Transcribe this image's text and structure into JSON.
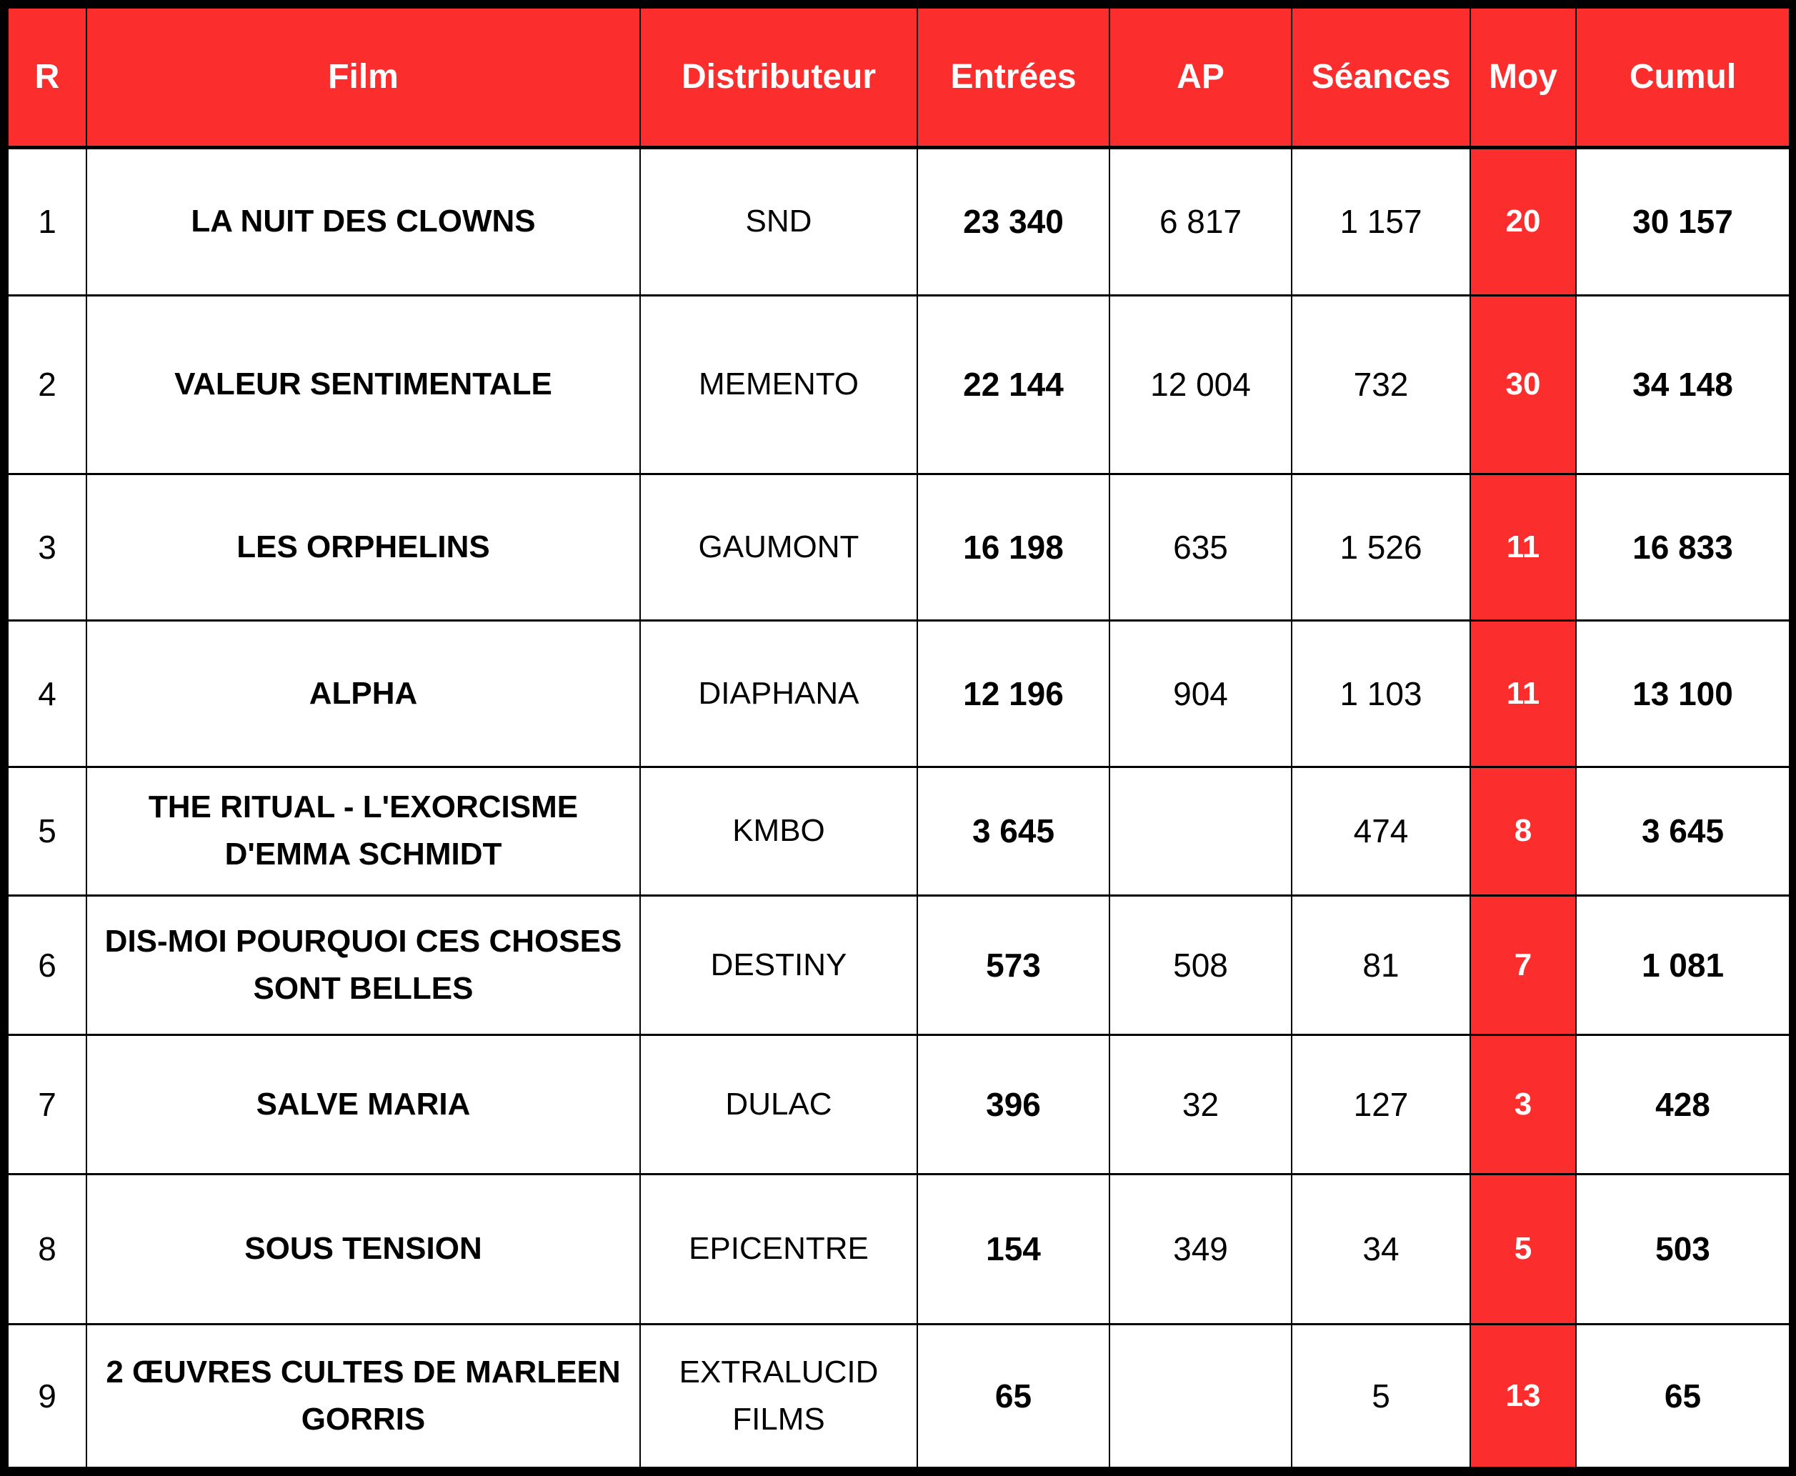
{
  "colors": {
    "accent_red": "#fc2d2d",
    "header_text": "#ffffff",
    "body_text": "#000000",
    "grid": "#000000"
  },
  "table": {
    "headers": [
      "R",
      "Film",
      "Distributeur",
      "Entrées",
      "AP",
      "Séances",
      "Moy",
      "Cumul"
    ],
    "rows": [
      {
        "rank": "1",
        "film": "LA NUIT DES CLOWNS",
        "distributeur": "SND",
        "entrees": "23 340",
        "ap": "6 817",
        "seances": "1 157",
        "moy": "20",
        "cumul": "30 157"
      },
      {
        "rank": "2",
        "film": "VALEUR SENTIMENTALE",
        "distributeur": "MEMENTO",
        "entrees": "22 144",
        "ap": "12 004",
        "seances": "732",
        "moy": "30",
        "cumul": "34 148"
      },
      {
        "rank": "3",
        "film": "LES ORPHELINS",
        "distributeur": "GAUMONT",
        "entrees": "16 198",
        "ap": "635",
        "seances": "1 526",
        "moy": "11",
        "cumul": "16 833"
      },
      {
        "rank": "4",
        "film": "ALPHA",
        "distributeur": "DIAPHANA",
        "entrees": "12 196",
        "ap": "904",
        "seances": "1 103",
        "moy": "11",
        "cumul": "13 100"
      },
      {
        "rank": "5",
        "film": "THE RITUAL - L'EXORCISME D'EMMA SCHMIDT",
        "distributeur": "KMBO",
        "entrees": "3 645",
        "ap": "",
        "seances": "474",
        "moy": "8",
        "cumul": "3 645"
      },
      {
        "rank": "6",
        "film": "DIS-MOI POURQUOI CES CHOSES SONT BELLES",
        "distributeur": "DESTINY",
        "entrees": "573",
        "ap": "508",
        "seances": "81",
        "moy": "7",
        "cumul": "1 081"
      },
      {
        "rank": "7",
        "film": "SALVE MARIA",
        "distributeur": "DULAC",
        "entrees": "396",
        "ap": "32",
        "seances": "127",
        "moy": "3",
        "cumul": "428"
      },
      {
        "rank": "8",
        "film": "SOUS TENSION",
        "distributeur": "EPICENTRE",
        "entrees": "154",
        "ap": "349",
        "seances": "34",
        "moy": "5",
        "cumul": "503"
      },
      {
        "rank": "9",
        "film": "2 ŒUVRES CULTES DE MARLEEN GORRIS",
        "distributeur": "EXTRALUCID FILMS",
        "entrees": "65",
        "ap": "",
        "seances": "5",
        "moy": "13",
        "cumul": "65"
      }
    ]
  }
}
